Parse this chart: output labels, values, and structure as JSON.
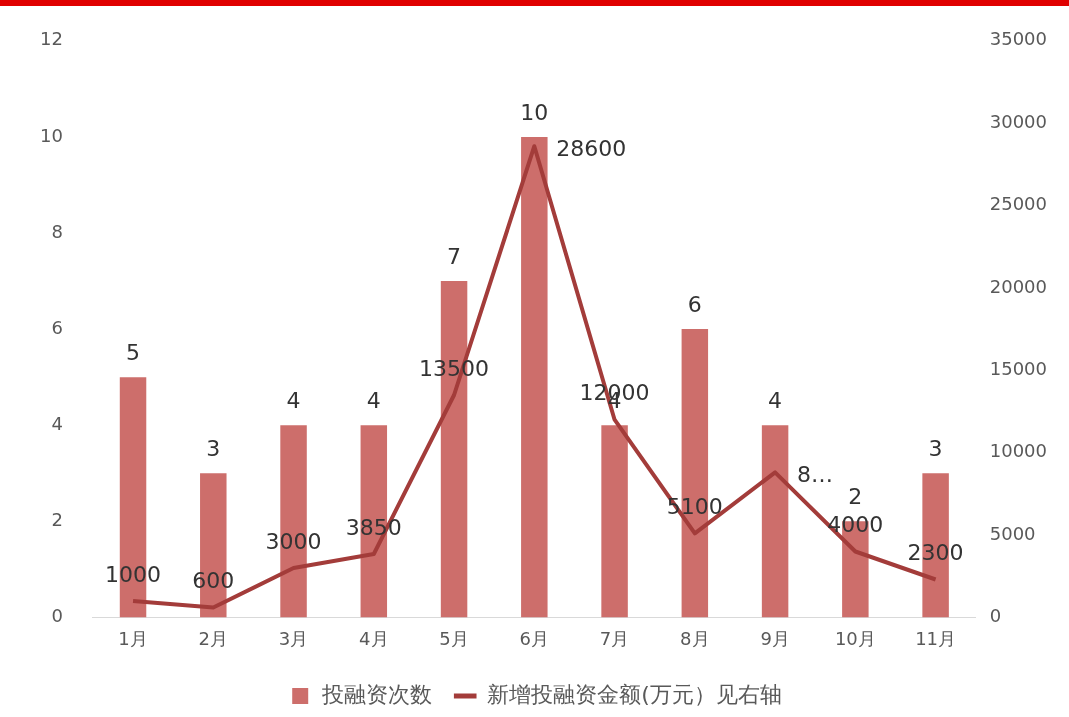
{
  "chart_data": {
    "type": "bar",
    "categories": [
      "1月",
      "2月",
      "3月",
      "4月",
      "5月",
      "6月",
      "7月",
      "8月",
      "9月",
      "10月",
      "11月"
    ],
    "series": [
      {
        "name": "投融资次数",
        "color": "#cd6e6b",
        "values": [
          5,
          3,
          4,
          4,
          7,
          10,
          4,
          6,
          4,
          2,
          3
        ],
        "value_labels": [
          "5",
          "3",
          "4",
          "4",
          "7",
          "10",
          "4",
          "6",
          "4",
          "2",
          "3"
        ]
      },
      {
        "name": "新增投融资金额(万元）见右轴",
        "type": "line",
        "axis": "y2",
        "color": "#a33c3a",
        "values": [
          1000,
          600,
          3000,
          3850,
          13500,
          28600,
          12000,
          5100,
          8800,
          4000,
          2300
        ],
        "value_labels": [
          "1000",
          "600",
          "3000",
          "3850",
          "13500",
          "28600",
          "12000",
          "5100",
          "8…",
          "4000",
          "2300"
        ]
      }
    ],
    "ylim": [
      0,
      12
    ],
    "yticks": [
      0,
      2,
      4,
      6,
      8,
      10,
      12
    ],
    "y2lim": [
      0,
      35000
    ],
    "y2ticks": [
      0,
      5000,
      10000,
      15000,
      20000,
      25000,
      30000,
      35000
    ],
    "grid": false,
    "legend": "bottom",
    "marker": "none",
    "line_style": "solid"
  }
}
